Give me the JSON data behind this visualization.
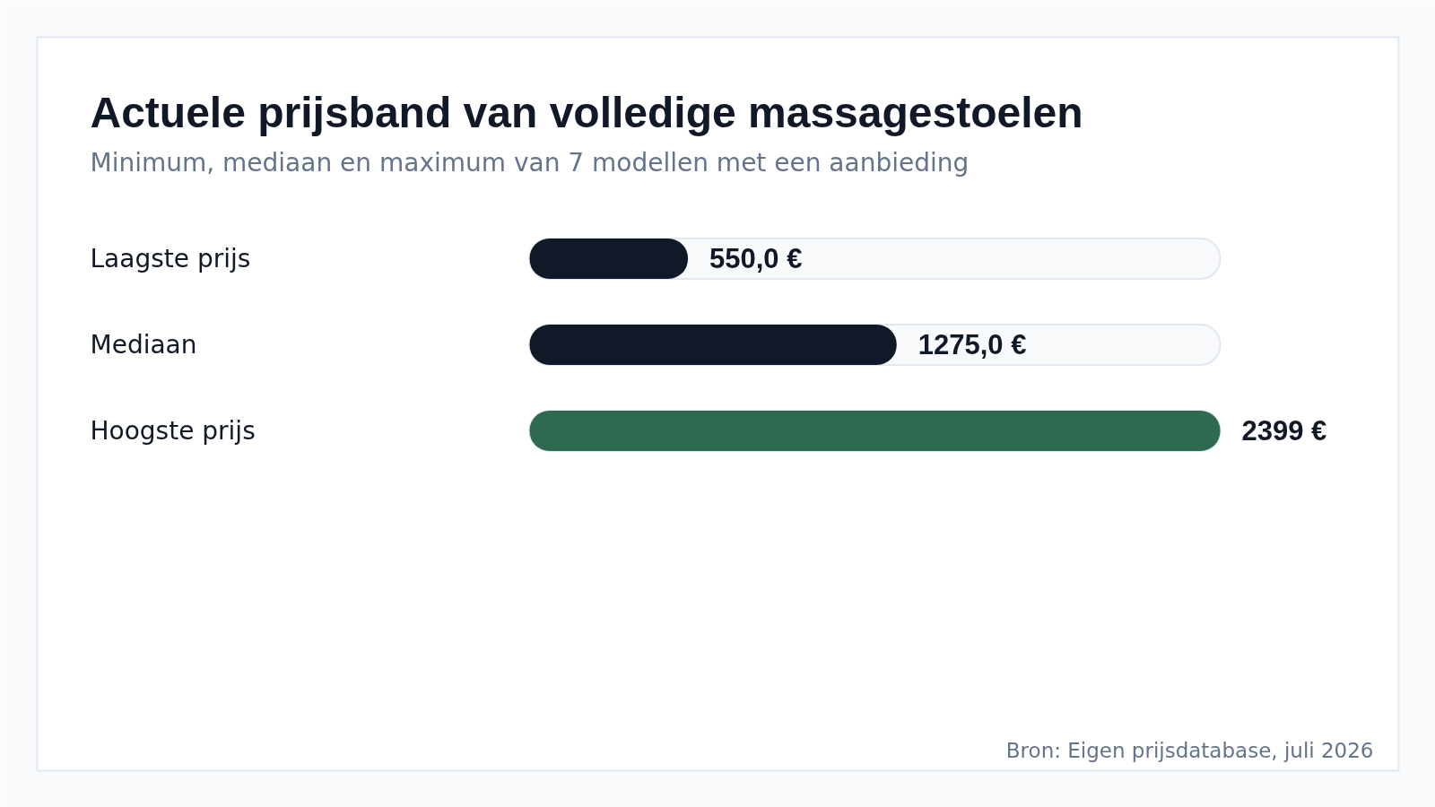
{
  "chart_data": {
    "type": "bar",
    "orientation": "horizontal",
    "title": "Actuele prijsband van volledige massagestoelen",
    "subtitle": "Minimum, mediaan en maximum van 7 modellen met een aanbieding",
    "categories": [
      "Laagste prijs",
      "Mediaan",
      "Hoogste prijs"
    ],
    "values": [
      550,
      1275,
      2399
    ],
    "colors": [
      "#111827",
      "#111827",
      "#2d6a4f"
    ],
    "value_labels": [
      "550,0 €",
      "1275,0 €",
      "2399 €"
    ],
    "xlim": [
      0,
      2399
    ],
    "tick_labels": "y",
    "annotations": [
      "Bron: Eigen prijsdatabase, juli 2026"
    ]
  }
}
